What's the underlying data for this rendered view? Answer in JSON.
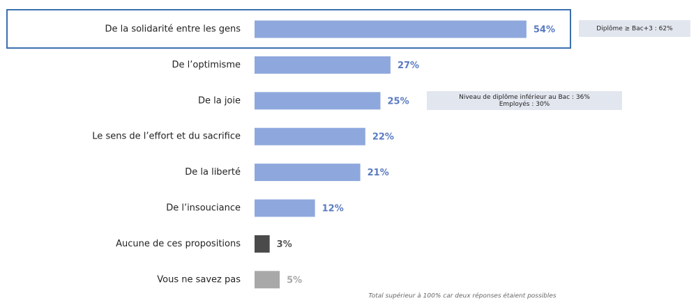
{
  "chart_data": {
    "type": "bar",
    "orientation": "horizontal",
    "categories": [
      "De la solidarité entre les gens",
      "De l’optimisme",
      "De la joie",
      "Le sens de l’effort et du sacrifice",
      "De la liberté",
      "De l’insouciance",
      "Aucune de ces propositions",
      "Vous ne savez pas"
    ],
    "values": [
      54,
      27,
      25,
      22,
      21,
      12,
      3,
      5
    ],
    "value_labels": [
      "54%",
      "27%",
      "25%",
      "22%",
      "21%",
      "12%",
      "3%",
      "5%"
    ],
    "colors": [
      "#8ea8dd",
      "#8ea8dd",
      "#8ea8dd",
      "#8ea8dd",
      "#8ea8dd",
      "#8ea8dd",
      "#4a4a4a",
      "#a8a8a8"
    ],
    "value_label_colors": [
      "#5a7ac2",
      "#5a7ac2",
      "#5a7ac2",
      "#5a7ac2",
      "#5a7ac2",
      "#5a7ac2",
      "#555555",
      "#a8a8a8"
    ],
    "annotations": [
      {
        "lines": [
          "Diplôme ≥ Bac+3 : 62%"
        ]
      },
      {
        "lines": [
          "Niveau de diplôme inférieur au Bac : 36%",
          "Employés : 30%"
        ]
      }
    ],
    "note": "Total supérieur à 100% car deux réponses étaient possibles"
  }
}
